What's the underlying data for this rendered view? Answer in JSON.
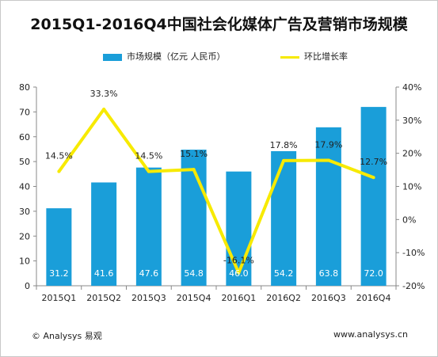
{
  "chart_data": {
    "type": "bar",
    "title": "2015Q1-2016Q4中国社会化媒体广告及营销市场规模",
    "categories": [
      "2015Q1",
      "2015Q2",
      "2015Q3",
      "2015Q4",
      "2016Q1",
      "2016Q2",
      "2016Q3",
      "2016Q4"
    ],
    "series": [
      {
        "name": "市场规模（亿元 人民币）",
        "type": "bar",
        "axis": "left",
        "values": [
          31.2,
          41.6,
          47.6,
          54.8,
          46.0,
          54.2,
          63.8,
          72.0
        ],
        "labels": [
          "31.2",
          "41.6",
          "47.6",
          "54.8",
          "46.0",
          "54.2",
          "63.8",
          "72.0"
        ]
      },
      {
        "name": "环比增长率",
        "type": "line",
        "axis": "right",
        "values": [
          14.5,
          33.3,
          14.5,
          15.1,
          -16.1,
          17.8,
          17.9,
          12.7
        ],
        "labels": [
          "14.5%",
          "33.3%",
          "14.5%",
          "15.1%",
          "-16.1%",
          "17.8%",
          "17.9%",
          "12.7%"
        ]
      }
    ],
    "ylim_left": [
      0,
      80
    ],
    "yticks_left": [
      "0",
      "10",
      "20",
      "30",
      "40",
      "50",
      "60",
      "70",
      "80"
    ],
    "ylim_right": [
      -20,
      40
    ],
    "yticks_right": [
      "-20%",
      "-10%",
      "0%",
      "10%",
      "20%",
      "30%",
      "40%"
    ],
    "legend_position": "top",
    "grid": false,
    "colors": {
      "bar": "#1a9ed9",
      "line": "#f7ea00"
    }
  },
  "footer": {
    "copyright": "© Analysys 易观",
    "url": "www.analysys.cn"
  }
}
